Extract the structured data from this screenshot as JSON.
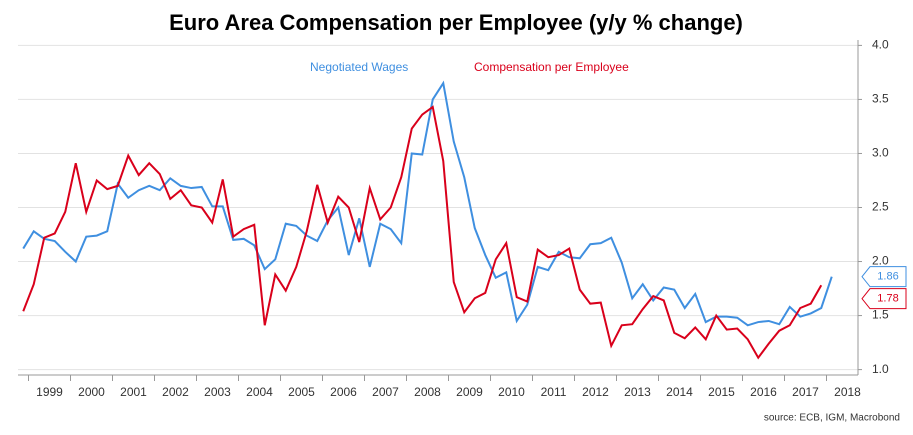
{
  "chart_data": {
    "type": "line",
    "title": "Euro Area Compensation per Employee (y/y % change)",
    "source": "source: ECB, IGM, Macrobond",
    "x": [
      1998.375,
      1998.625,
      1998.875,
      1999.125,
      1999.375,
      1999.625,
      1999.875,
      2000.125,
      2000.375,
      2000.625,
      2000.875,
      2001.125,
      2001.375,
      2001.625,
      2001.875,
      2002.125,
      2002.375,
      2002.625,
      2002.875,
      2003.125,
      2003.375,
      2003.625,
      2003.875,
      2004.125,
      2004.375,
      2004.625,
      2004.875,
      2005.125,
      2005.375,
      2005.625,
      2005.875,
      2006.125,
      2006.375,
      2006.625,
      2006.875,
      2007.125,
      2007.375,
      2007.625,
      2007.875,
      2008.125,
      2008.375,
      2008.625,
      2008.875,
      2009.125,
      2009.375,
      2009.625,
      2009.875,
      2010.125,
      2010.375,
      2010.625,
      2010.875,
      2011.125,
      2011.375,
      2011.625,
      2011.875,
      2012.125,
      2012.375,
      2012.625,
      2012.875,
      2013.125,
      2013.375,
      2013.625,
      2013.875,
      2014.125,
      2014.375,
      2014.625,
      2014.875,
      2015.125,
      2015.375,
      2015.625,
      2015.875,
      2016.125,
      2016.375,
      2016.625,
      2016.875,
      2017.125,
      2017.375,
      2017.625
    ],
    "series": [
      {
        "name": "Negotiated Wages",
        "color": "#3f8fe0",
        "values": [
          2.12,
          2.28,
          2.21,
          2.19,
          2.09,
          2.0,
          2.23,
          2.24,
          2.28,
          2.72,
          2.59,
          2.66,
          2.7,
          2.66,
          2.77,
          2.7,
          2.68,
          2.69,
          2.51,
          2.51,
          2.2,
          2.21,
          2.15,
          1.93,
          2.02,
          2.35,
          2.33,
          2.24,
          2.19,
          2.38,
          2.5,
          2.06,
          2.4,
          1.95,
          2.35,
          2.3,
          2.17,
          3.0,
          2.99,
          3.5,
          3.65,
          3.11,
          2.78,
          2.31,
          2.06,
          1.85,
          1.9,
          1.45,
          1.6,
          1.95,
          1.92,
          2.09,
          2.04,
          2.03,
          2.16,
          2.17,
          2.22,
          1.99,
          1.66,
          1.79,
          1.64,
          1.76,
          1.74,
          1.57,
          1.7,
          1.44,
          1.49,
          1.49,
          1.48,
          1.41,
          1.44,
          1.45,
          1.42,
          1.58,
          1.49,
          1.52,
          1.57,
          1.86
        ]
      },
      {
        "name": "Compensation per Employee",
        "color": "#d9001b",
        "values": [
          1.54,
          1.79,
          2.22,
          2.26,
          2.46,
          2.91,
          2.46,
          2.75,
          2.67,
          2.7,
          2.98,
          2.8,
          2.91,
          2.81,
          2.58,
          2.66,
          2.52,
          2.5,
          2.36,
          2.76,
          2.23,
          2.3,
          2.34,
          1.41,
          1.88,
          1.73,
          1.95,
          2.28,
          2.71,
          2.36,
          2.6,
          2.5,
          2.18,
          2.68,
          2.39,
          2.5,
          2.78,
          3.23,
          3.36,
          3.43,
          2.93,
          1.81,
          1.53,
          1.66,
          1.71,
          2.02,
          2.17,
          1.67,
          1.63,
          2.11,
          2.04,
          2.06,
          2.12,
          1.74,
          1.61,
          1.62,
          1.22,
          1.41,
          1.42,
          1.56,
          1.68,
          1.64,
          1.34,
          1.29,
          1.39,
          1.28,
          1.5,
          1.37,
          1.38,
          1.28,
          1.11,
          1.24,
          1.36,
          1.41,
          1.57,
          1.61,
          1.78,
          null
        ]
      }
    ],
    "xlim": [
      1998.25,
      2018.25
    ],
    "xticks": [
      1999,
      2000,
      2001,
      2002,
      2003,
      2004,
      2005,
      2006,
      2007,
      2008,
      2009,
      2010,
      2011,
      2012,
      2013,
      2014,
      2015,
      2016,
      2017,
      2018
    ],
    "ylim": [
      0.95,
      4.05
    ],
    "yticks": [
      {
        "value": 1,
        "label": "1.0"
      },
      {
        "value": 1.5,
        "label": "1.5"
      },
      {
        "value": 2,
        "label": "2.0"
      },
      {
        "value": 2.5,
        "label": "2.5"
      },
      {
        "value": 3,
        "label": "3.0"
      },
      {
        "value": 3.5,
        "label": "3.5"
      },
      {
        "value": 4,
        "label": "4.0"
      }
    ],
    "grid": true
  }
}
